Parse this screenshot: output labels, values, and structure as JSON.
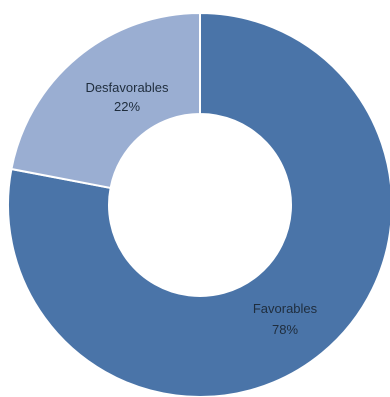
{
  "chart_data": {
    "type": "pie",
    "donut": true,
    "title": "",
    "slices": [
      {
        "label": "Favorables",
        "value": 78,
        "percent_label": "78%",
        "color": "#4a74a8"
      },
      {
        "label": "Desfavorables",
        "value": 22,
        "percent_label": "22%",
        "color": "#9aaed2"
      }
    ],
    "legend": "none",
    "slice_border_color": "#ffffff"
  }
}
